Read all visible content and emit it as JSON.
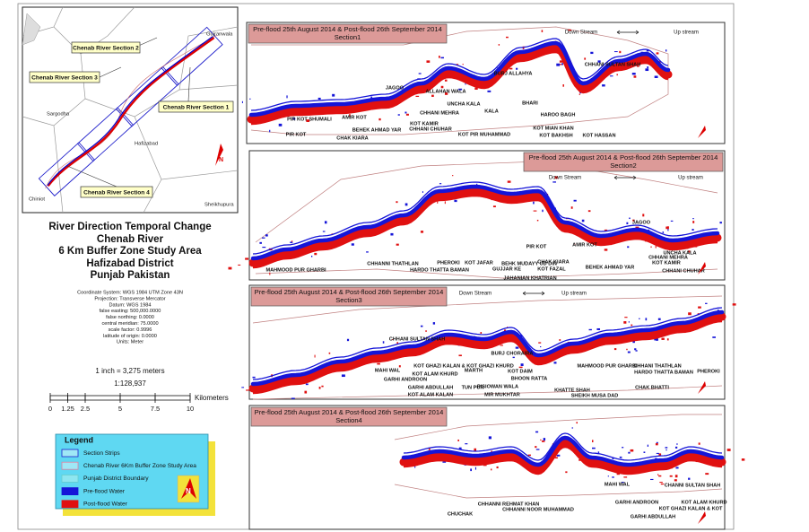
{
  "inset_map": {
    "section_labels": [
      "Chenab River Section 2",
      "Chenab River Section 3",
      "Chenab River Section 1",
      "Chenab River Section 4"
    ],
    "towns": [
      "Sargodha",
      "Hafizabad",
      "Gujranwala",
      "Sheikhupura",
      "Chiniot"
    ]
  },
  "title": {
    "lines": [
      "River Direction Temporal Change",
      "Chenab River",
      "6 Km Buffer Zone Study Area",
      "Hafizabad District",
      "Punjab Pakistan"
    ]
  },
  "projection": [
    "Coordinate System: WGS 1984 UTM Zone 43N",
    "Projection: Transverse Mercator",
    "Datum: WGS 1984",
    "false easting: 500,000.0000",
    "false northing: 0.0000",
    "central meridian: 75.0000",
    "scale factor: 0.9996",
    "latitude of origin: 0.0000",
    "Units: Meter"
  ],
  "scale": {
    "ratio_text": "1 inch = 3,275 meters",
    "fraction": "1:128,937",
    "ticks": [
      "0",
      "1.25",
      "2.5",
      "5",
      "7.5",
      "10"
    ],
    "unit": "Kilometers"
  },
  "legend": {
    "title": "Legend",
    "items": [
      "Section Strips",
      "Chenab River 6Km Buffer Zone Study Area",
      "Punjab District Boundary",
      "Pre-flood Water",
      "Post-flood Water"
    ]
  },
  "panels": [
    {
      "header": [
        "Pre-flood 25th August 2014 & Post-flood 26th September 2014",
        "Section1"
      ],
      "direction": [
        "Down Stream",
        "Up stream"
      ],
      "places": [
        "JAGOO",
        "BURJ ALLAHYA",
        "CHHANI SULTAN SHAH",
        "ALLAHAN WALA",
        "UNCHA KALA",
        "CHHANI MEHRA",
        "KALA",
        "BHARI",
        "HAROO BAGH",
        "PIR KOT SHUMALI",
        "AMIR KOT",
        "KOT KAMIR",
        "CHHANI CHUHAR",
        "BEHEK AHMAD YAR",
        "PIR KOT",
        "CHAK KIARA",
        "KOT PIR MUHAMMAD",
        "KOT MIAN KHAN",
        "KOT BAKHSH",
        "KOT HASSAN"
      ]
    },
    {
      "header": [
        "Pre-flood 25th August 2014 & Post-flood 26th September 2014",
        "Section2"
      ],
      "direction": [
        "Down Stream",
        "Up stream"
      ],
      "places": [
        "JAGOO",
        "PIR KOT",
        "AMIR KOT",
        "CHAK KIARA",
        "KOT FAZAL",
        "BEHEK AHMAD YAR",
        "UNCHA KALA",
        "CHHANI MEHRA",
        "KOT KAMIR",
        "CHHANI CHUHAR",
        "CHHANNI THATHLAN",
        "HARDO THATTA BAMAN",
        "MAHMOOD PUR GHARBI",
        "PHEROKI",
        "KOT JAFAR",
        "GUJJAR KE",
        "BEHK MUDAYY UD DIN",
        "JAHANIAN KHATRIAN"
      ]
    },
    {
      "header": [
        "Pre-flood 25th August 2014 & Post-flood 26th September 2014",
        "Section3"
      ],
      "direction": [
        "Down Stream",
        "Up stream"
      ],
      "places": [
        "CHHANI SULTAN SHAH",
        "BURJ CHORAIRA",
        "MAHI WAL",
        "KOT GHAZI KALAN & KOT GHAZI KHURD",
        "KOT ALAM KHURD",
        "MARTH",
        "KOT DAIM",
        "GARHI ANDROON",
        "BHOON RATTA",
        "PISIOWAN WALA",
        "GARHI ABDULLAH",
        "TUN PUR",
        "KOT ALAM KALAN",
        "MIR MUKHTAR",
        "KHATTE SHAH",
        "SHEIKH MUSA DAD",
        "MAHMOOD PUR GHARBI",
        "CHHANI THATHLAN",
        "HARDO THATTA BAMAN",
        "PHEROKI",
        "CHAK BHATTI"
      ]
    },
    {
      "header": [
        "Pre-flood 25th August 2014 & Post-flood 26th September 2014",
        "Section4"
      ],
      "places": [
        "MAHI WAL",
        "CHANNI SULTAN SHAH",
        "GARHI ANDROON",
        "KOT ALAM KHURD",
        "KOT GHAZI KALAN & KOT",
        "GARHI ABDULLAH",
        "CHHANNI REHMAT KHAN",
        "CHHANNI NOOR MUHAMMAD",
        "CHUCHAK"
      ]
    }
  ]
}
